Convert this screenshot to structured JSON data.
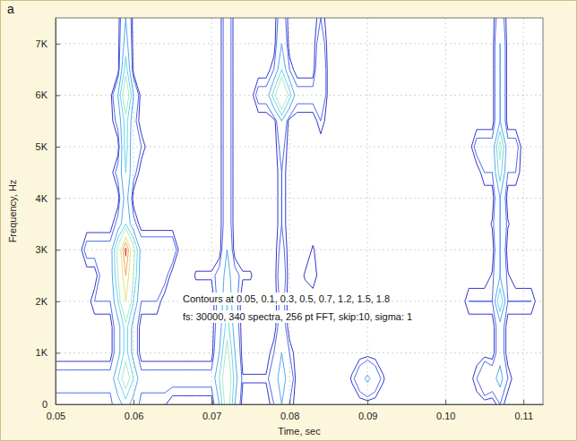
{
  "chart_data": {
    "type": "contour",
    "panel_label": "a",
    "xlabel": "Time, sec",
    "ylabel": "Frequency, Hz",
    "annotations": [
      "Contours at 0.05, 0.1, 0.3, 0.5, 0.7, 1.2, 1.5, 1.8",
      "fs: 30000, 340 spectra, 256 pt FFT, skip:10, sigma: 1"
    ],
    "thresholds": [
      0.05,
      0.1,
      0.3,
      0.5,
      0.7,
      1.2,
      1.5,
      1.8
    ],
    "colors": [
      "#1f1fc4",
      "#3c5ce8",
      "#3f9ff0",
      "#5cd0e6",
      "#9ee6c0",
      "#e2dc70",
      "#f0a040",
      "#e0301e"
    ],
    "xlim": [
      0.05,
      0.1125
    ],
    "ylim": [
      0,
      7500
    ],
    "xticks": [
      0.05,
      0.06,
      0.07,
      0.08,
      0.09,
      {
        "value": 0.1,
        "label": "0.10"
      },
      0.11
    ],
    "yticks": [
      0,
      {
        "value": 1000,
        "label": "1K"
      },
      {
        "value": 2000,
        "label": "2K"
      },
      {
        "value": 3000,
        "label": "3K"
      },
      {
        "value": 4000,
        "label": "4K"
      },
      {
        "value": 5000,
        "label": "5K"
      },
      {
        "value": 6000,
        "label": "6K"
      },
      {
        "value": 7000,
        "label": "7K"
      }
    ],
    "grid": true,
    "x": [
      0.05,
      0.051,
      0.052,
      0.053,
      0.054,
      0.055,
      0.056,
      0.057,
      0.058,
      0.059,
      0.06,
      0.061,
      0.062,
      0.063,
      0.064,
      0.065,
      0.066,
      0.067,
      0.068,
      0.069,
      0.07,
      0.071,
      0.072,
      0.073,
      0.074,
      0.075,
      0.076,
      0.077,
      0.078,
      0.079,
      0.08,
      0.081,
      0.082,
      0.083,
      0.084,
      0.085,
      0.086,
      0.087,
      0.088,
      0.089,
      0.09,
      0.091,
      0.092,
      0.093,
      0.094,
      0.095,
      0.096,
      0.097,
      0.098,
      0.099,
      0.1,
      0.101,
      0.102,
      0.103,
      0.104,
      0.105,
      0.106,
      0.107,
      0.108,
      0.109,
      0.11,
      0.111,
      0.112
    ],
    "y": [
      0,
      500,
      1000,
      1500,
      2000,
      2500,
      3000,
      3500,
      4000,
      4500,
      5000,
      5500,
      6000,
      6500,
      7000,
      7500
    ],
    "z": [
      [
        0.06,
        0.06,
        0.06,
        0.06,
        0.06,
        0.06,
        0.06,
        0.06,
        0.2,
        0.4,
        0.2,
        0.06,
        0.06,
        0.06,
        0.06,
        0,
        0,
        0,
        0,
        0,
        0,
        0.3,
        0.9,
        0.3,
        0,
        0,
        0,
        0,
        0.1,
        0.3,
        0.1,
        0,
        0,
        0,
        0,
        0,
        0,
        0,
        0,
        0,
        0,
        0,
        0,
        0,
        0,
        0,
        0,
        0,
        0,
        0,
        0,
        0,
        0,
        0,
        0,
        0,
        0,
        0.1,
        0,
        0,
        0,
        0,
        0
      ],
      [
        0.15,
        0.15,
        0.15,
        0.15,
        0.15,
        0.15,
        0.15,
        0.15,
        0.5,
        0.9,
        0.5,
        0.15,
        0.15,
        0.15,
        0.15,
        0.15,
        0.15,
        0.15,
        0.15,
        0.15,
        0.15,
        0.5,
        1.0,
        0.4,
        0.06,
        0.06,
        0.06,
        0.06,
        0.2,
        0.4,
        0.2,
        0,
        0,
        0,
        0,
        0,
        0,
        0,
        0.06,
        0.2,
        0.35,
        0.2,
        0.06,
        0,
        0,
        0,
        0,
        0,
        0,
        0,
        0,
        0,
        0,
        0,
        0.1,
        0.3,
        0.2,
        0.4,
        0.1,
        0,
        0,
        0,
        0
      ],
      [
        0,
        0,
        0,
        0,
        0,
        0,
        0,
        0,
        0.2,
        0.6,
        0.2,
        0,
        0,
        0,
        0,
        0,
        0,
        0,
        0,
        0,
        0,
        0.3,
        0.8,
        0.3,
        0,
        0,
        0,
        0,
        0.1,
        0.3,
        0.1,
        0,
        0,
        0,
        0,
        0,
        0,
        0,
        0,
        0,
        0,
        0,
        0,
        0,
        0,
        0,
        0,
        0,
        0,
        0,
        0,
        0,
        0,
        0,
        0,
        0,
        0,
        0.2,
        0,
        0,
        0,
        0,
        0
      ],
      [
        0,
        0,
        0,
        0,
        0,
        0,
        0,
        0,
        0.2,
        0.6,
        0.2,
        0,
        0,
        0,
        0,
        0,
        0,
        0,
        0,
        0,
        0,
        0.2,
        0.6,
        0.2,
        0,
        0,
        0,
        0,
        0,
        0.2,
        0,
        0,
        0,
        0,
        0,
        0,
        0,
        0,
        0,
        0,
        0,
        0,
        0,
        0,
        0,
        0,
        0,
        0,
        0,
        0,
        0,
        0,
        0,
        0,
        0,
        0,
        0,
        0.2,
        0,
        0,
        0,
        0,
        0
      ],
      [
        0,
        0,
        0,
        0,
        0,
        0.1,
        0.1,
        0.1,
        0.5,
        1.2,
        0.5,
        0.1,
        0.1,
        0.1,
        0,
        0,
        0,
        0,
        0,
        0,
        0,
        0.15,
        0.5,
        0.15,
        0,
        0,
        0,
        0,
        0,
        0.15,
        0,
        0,
        0,
        0,
        0,
        0,
        0,
        0,
        0,
        0,
        0,
        0,
        0,
        0,
        0,
        0,
        0,
        0,
        0,
        0,
        0,
        0,
        0,
        0.1,
        0.1,
        0.1,
        0.1,
        0.7,
        0.1,
        0.1,
        0.1,
        0.1,
        0
      ],
      [
        0,
        0,
        0,
        0,
        0,
        0,
        0.15,
        0.15,
        0.7,
        1.5,
        0.7,
        0.15,
        0.15,
        0.15,
        0.15,
        0,
        0,
        0,
        0.06,
        0.06,
        0.06,
        0.15,
        0.4,
        0.15,
        0.06,
        0.06,
        0,
        0,
        0,
        0.2,
        0,
        0,
        0.06,
        0.1,
        0,
        0,
        0,
        0,
        0,
        0,
        0,
        0,
        0,
        0,
        0,
        0,
        0,
        0,
        0,
        0,
        0,
        0,
        0,
        0,
        0,
        0,
        0.06,
        0.3,
        0.06,
        0,
        0,
        0,
        0
      ],
      [
        0,
        0,
        0,
        0,
        0.15,
        0.15,
        0.15,
        0.15,
        0.8,
        1.9,
        0.8,
        0.2,
        0.2,
        0.2,
        0.2,
        0.2,
        0,
        0,
        0,
        0,
        0,
        0,
        0.3,
        0,
        0,
        0,
        0,
        0,
        0,
        0.15,
        0,
        0,
        0,
        0.06,
        0,
        0,
        0,
        0,
        0,
        0,
        0,
        0,
        0,
        0,
        0,
        0,
        0,
        0,
        0,
        0,
        0,
        0,
        0,
        0,
        0,
        0,
        0,
        0.3,
        0,
        0,
        0,
        0,
        0
      ],
      [
        0,
        0,
        0,
        0,
        0,
        0,
        0,
        0,
        0.15,
        0.5,
        0.15,
        0,
        0,
        0,
        0,
        0,
        0,
        0,
        0,
        0,
        0,
        0,
        0.2,
        0,
        0,
        0,
        0,
        0,
        0,
        0.1,
        0,
        0,
        0,
        0,
        0,
        0,
        0,
        0,
        0,
        0,
        0,
        0,
        0,
        0,
        0,
        0,
        0,
        0,
        0,
        0,
        0,
        0,
        0,
        0,
        0,
        0,
        0.06,
        0.3,
        0.06,
        0,
        0,
        0,
        0
      ],
      [
        0,
        0,
        0,
        0,
        0,
        0,
        0,
        0,
        0,
        0.4,
        0,
        0,
        0,
        0,
        0,
        0,
        0,
        0,
        0,
        0,
        0,
        0,
        0.2,
        0,
        0,
        0,
        0,
        0,
        0,
        0.1,
        0,
        0,
        0,
        0,
        0,
        0,
        0,
        0,
        0,
        0,
        0,
        0,
        0,
        0,
        0,
        0,
        0,
        0,
        0,
        0,
        0,
        0,
        0,
        0,
        0,
        0,
        0,
        0.3,
        0,
        0,
        0,
        0,
        0
      ],
      [
        0,
        0,
        0,
        0,
        0,
        0,
        0,
        0,
        0.15,
        0.5,
        0.15,
        0,
        0,
        0,
        0,
        0,
        0,
        0,
        0,
        0,
        0,
        0,
        0.2,
        0,
        0,
        0,
        0,
        0,
        0,
        0.1,
        0,
        0,
        0,
        0,
        0,
        0,
        0,
        0,
        0,
        0,
        0,
        0,
        0,
        0,
        0,
        0,
        0,
        0,
        0,
        0,
        0,
        0,
        0,
        0,
        0,
        0.1,
        0.1,
        0.6,
        0.1,
        0.1,
        0,
        0,
        0
      ],
      [
        0,
        0,
        0,
        0,
        0,
        0,
        0,
        0,
        0,
        0.6,
        0.1,
        0.1,
        0,
        0,
        0,
        0,
        0,
        0,
        0,
        0,
        0,
        0,
        0.2,
        0,
        0,
        0,
        0,
        0,
        0,
        0.15,
        0,
        0,
        0,
        0,
        0,
        0,
        0,
        0,
        0,
        0,
        0,
        0,
        0,
        0,
        0,
        0,
        0,
        0,
        0,
        0,
        0,
        0,
        0,
        0,
        0.15,
        0.15,
        0.15,
        0.8,
        0.15,
        0.15,
        0,
        0,
        0
      ],
      [
        0,
        0,
        0,
        0,
        0,
        0,
        0,
        0,
        0.15,
        0.6,
        0.15,
        0,
        0,
        0,
        0,
        0,
        0,
        0,
        0,
        0,
        0,
        0,
        0.2,
        0,
        0,
        0,
        0,
        0,
        0,
        0.3,
        0,
        0,
        0,
        0,
        0.1,
        0,
        0,
        0,
        0,
        0,
        0,
        0,
        0,
        0,
        0,
        0,
        0,
        0,
        0,
        0,
        0,
        0,
        0,
        0,
        0,
        0,
        0,
        0.3,
        0,
        0,
        0,
        0,
        0
      ],
      [
        0,
        0,
        0,
        0,
        0,
        0,
        0,
        0,
        0.3,
        1.0,
        0.3,
        0,
        0,
        0,
        0,
        0,
        0,
        0,
        0,
        0,
        0,
        0,
        0.2,
        0,
        0,
        0,
        0.15,
        0.15,
        0.6,
        1.2,
        0.6,
        0.15,
        0.15,
        0.15,
        0.3,
        0,
        0,
        0,
        0,
        0,
        0,
        0,
        0,
        0,
        0,
        0,
        0,
        0,
        0,
        0,
        0,
        0,
        0,
        0,
        0,
        0,
        0,
        0.3,
        0,
        0,
        0,
        0,
        0
      ],
      [
        0,
        0,
        0,
        0,
        0,
        0,
        0,
        0,
        0,
        0.6,
        0,
        0,
        0,
        0,
        0,
        0,
        0,
        0,
        0,
        0,
        0,
        0,
        0.2,
        0,
        0,
        0,
        0,
        0,
        0.1,
        0.5,
        0.1,
        0,
        0,
        0,
        0.3,
        0,
        0,
        0,
        0,
        0,
        0,
        0,
        0,
        0,
        0,
        0,
        0,
        0,
        0,
        0,
        0,
        0,
        0,
        0,
        0,
        0,
        0,
        0.3,
        0,
        0,
        0,
        0,
        0
      ],
      [
        0,
        0,
        0,
        0,
        0,
        0,
        0,
        0,
        0,
        0.4,
        0,
        0,
        0,
        0,
        0,
        0,
        0,
        0,
        0,
        0,
        0,
        0,
        0.2,
        0,
        0,
        0,
        0,
        0,
        0,
        0.3,
        0,
        0,
        0,
        0,
        0.2,
        0,
        0,
        0,
        0,
        0,
        0,
        0,
        0,
        0,
        0,
        0,
        0,
        0,
        0,
        0,
        0,
        0,
        0,
        0,
        0,
        0,
        0,
        0.3,
        0,
        0,
        0,
        0,
        0
      ],
      [
        0,
        0,
        0,
        0,
        0,
        0,
        0,
        0,
        0,
        0.3,
        0,
        0,
        0,
        0,
        0,
        0,
        0,
        0,
        0,
        0,
        0,
        0,
        0.2,
        0,
        0,
        0,
        0,
        0,
        0,
        0.2,
        0,
        0,
        0,
        0,
        0.1,
        0,
        0,
        0,
        0,
        0,
        0,
        0,
        0,
        0,
        0,
        0,
        0,
        0,
        0,
        0,
        0,
        0,
        0,
        0,
        0,
        0,
        0,
        0.2,
        0,
        0,
        0,
        0,
        0
      ]
    ]
  }
}
